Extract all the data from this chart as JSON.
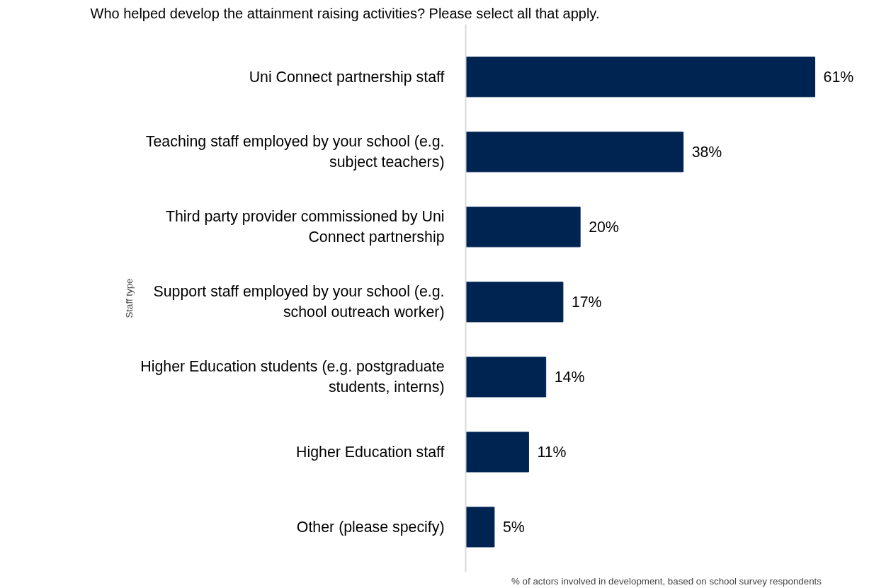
{
  "chart_data": {
    "type": "bar",
    "orientation": "horizontal",
    "title": "Who helped develop the attainment raising activities? Please select all that apply.",
    "xlabel": "% of actors involved in development, based on school survey respondents",
    "ylabel": "Staff type",
    "categories": [
      "Uni Connect partnership staff",
      "Teaching staff employed by your school (e.g. subject teachers)",
      "Third party provider commissioned by Uni Connect partnership",
      "Support staff employed by your school (e.g. school outreach worker)",
      "Higher Education students (e.g. postgraduate students, interns)",
      "Higher Education staff",
      "Other (please specify)"
    ],
    "values": [
      61,
      38,
      20,
      17,
      14,
      11,
      5
    ],
    "value_labels": [
      "61%",
      "38%",
      "20%",
      "17%",
      "14%",
      "11%",
      "5%"
    ],
    "color": "#002452",
    "grid": false,
    "tick_labels": "y"
  }
}
